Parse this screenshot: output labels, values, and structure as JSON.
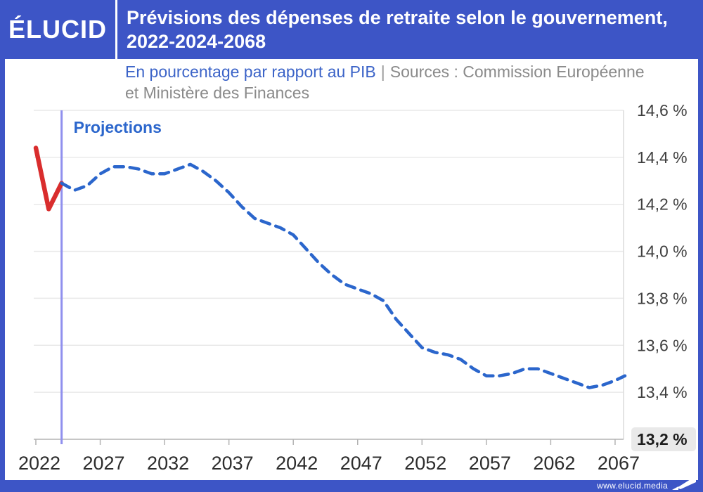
{
  "brand": {
    "logo_text": "ÉLUCID"
  },
  "header": {
    "title": "Prévisions des dépenses de retraite selon le gouvernement, 2022-2024-2068"
  },
  "subtitle": {
    "metric": "En pourcentage par rapport au PIB",
    "separator": "|",
    "sources_line1": "Sources : Commission Européenne",
    "sources_line2": "et Ministère des Finances"
  },
  "footer": {
    "url": "www.elucid.media"
  },
  "colors": {
    "header_blue": "#3d55c6",
    "accent_blue": "#2b66cc",
    "red": "#d92d2d",
    "projection_rule": "#9090ee",
    "grid": "#e9e9e9",
    "axis": "#b3b3b3",
    "plot_right_border": "#dcdcdc",
    "highlight_bg": "#e9e9e9"
  },
  "chart_data": {
    "type": "line",
    "title": "Prévisions des dépenses de retraite selon le gouvernement, 2022-2024-2068",
    "ylabel": "En pourcentage par rapport au PIB",
    "xlabel": "",
    "grid": true,
    "legend_position": "none",
    "annotation": "Projections",
    "projection_line_x": 2024,
    "ylim": [
      13.2,
      14.6
    ],
    "xlim": [
      2022,
      2068
    ],
    "y_ticks": [
      14.6,
      14.4,
      14.2,
      14.0,
      13.8,
      13.6,
      13.4,
      13.2
    ],
    "y_tick_labels": [
      "14,6 %",
      "14,4 %",
      "14,2 %",
      "14,0 %",
      "13,8 %",
      "13,6 %",
      "13,4 %",
      "13,2 %"
    ],
    "highlighted_y_tick": "13,2 %",
    "x_ticks": [
      2022,
      2027,
      2032,
      2037,
      2042,
      2047,
      2052,
      2057,
      2062,
      2067
    ],
    "x_tick_labels": [
      "2022",
      "2027",
      "2032",
      "2037",
      "2042",
      "2047",
      "2052",
      "2057",
      "2062",
      "2067"
    ],
    "series": [
      {
        "name": "observed-2022-2024",
        "color": "#d92d2d",
        "style": "solid",
        "points": [
          [
            2022,
            14.44
          ],
          [
            2023,
            14.18
          ],
          [
            2024,
            14.29
          ]
        ]
      },
      {
        "name": "projection-2024-2068",
        "color": "#2b66cc",
        "style": "dashed",
        "points": [
          [
            2024,
            14.29
          ],
          [
            2025,
            14.26
          ],
          [
            2026,
            14.28
          ],
          [
            2027,
            14.33
          ],
          [
            2028,
            14.36
          ],
          [
            2029,
            14.36
          ],
          [
            2030,
            14.35
          ],
          [
            2031,
            14.33
          ],
          [
            2032,
            14.33
          ],
          [
            2033,
            14.35
          ],
          [
            2034,
            14.37
          ],
          [
            2035,
            14.34
          ],
          [
            2036,
            14.3
          ],
          [
            2037,
            14.25
          ],
          [
            2038,
            14.19
          ],
          [
            2039,
            14.14
          ],
          [
            2040,
            14.12
          ],
          [
            2041,
            14.1
          ],
          [
            2042,
            14.07
          ],
          [
            2043,
            14.01
          ],
          [
            2044,
            13.95
          ],
          [
            2045,
            13.9
          ],
          [
            2046,
            13.86
          ],
          [
            2047,
            13.84
          ],
          [
            2048,
            13.82
          ],
          [
            2049,
            13.79
          ],
          [
            2050,
            13.71
          ],
          [
            2051,
            13.65
          ],
          [
            2052,
            13.59
          ],
          [
            2053,
            13.57
          ],
          [
            2054,
            13.56
          ],
          [
            2055,
            13.54
          ],
          [
            2056,
            13.5
          ],
          [
            2057,
            13.47
          ],
          [
            2058,
            13.47
          ],
          [
            2059,
            13.48
          ],
          [
            2060,
            13.5
          ],
          [
            2061,
            13.5
          ],
          [
            2062,
            13.48
          ],
          [
            2063,
            13.46
          ],
          [
            2064,
            13.44
          ],
          [
            2065,
            13.42
          ],
          [
            2066,
            13.43
          ],
          [
            2067,
            13.45
          ],
          [
            2068,
            13.47
          ]
        ]
      }
    ]
  }
}
